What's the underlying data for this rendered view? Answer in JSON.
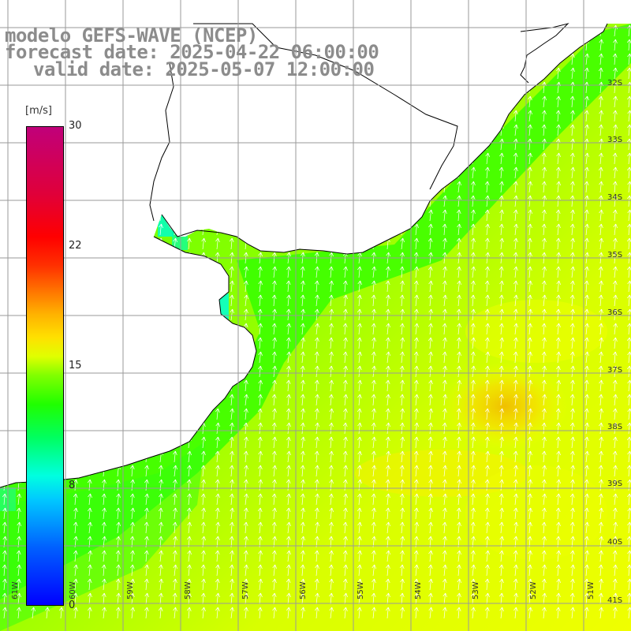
{
  "title": {
    "line1": "modelo GEFS-WAVE (NCEP)",
    "line2": "forecast date: 2025-04-22 06:00:00",
    "line3": "valid date: 2025-05-07 12:00:00"
  },
  "colorbar": {
    "unit": "[m/s]",
    "ticks": [
      "30",
      "22",
      "15",
      "8",
      "0"
    ],
    "tick_values": [
      30,
      22,
      15,
      8,
      0
    ],
    "min": 0,
    "max": 30
  },
  "map": {
    "lat_labels": [
      "32S",
      "33S",
      "34S",
      "35S",
      "36S",
      "37S",
      "38S",
      "39S",
      "40S",
      "41S"
    ],
    "lon_labels": [
      "61W",
      "60W",
      "59W",
      "58W",
      "57W",
      "56W",
      "55W",
      "54W",
      "53W",
      "52W",
      "51W"
    ],
    "colors": {
      "land": "#ffffff",
      "coast": "#000000",
      "grid": "#9a9a9a",
      "arrow": "#ffffff",
      "title": "#8c8c8c"
    }
  }
}
